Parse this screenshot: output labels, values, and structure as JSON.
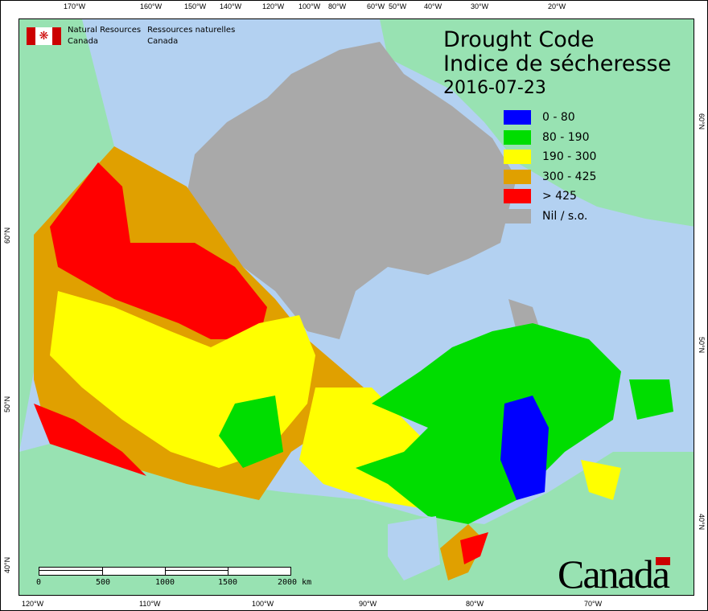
{
  "header": {
    "org_en_1": "Natural Resources",
    "org_en_2": "Canada",
    "org_fr_1": "Ressources naturelles",
    "org_fr_2": "Canada"
  },
  "title": {
    "en": "Drought Code",
    "fr": "Indice de sécheresse",
    "date": "2016-07-23"
  },
  "legend": [
    {
      "label": "0 - 80",
      "color": "#0000ff"
    },
    {
      "label": "80 - 190",
      "color": "#00dd00"
    },
    {
      "label": "190 - 300",
      "color": "#ffff00"
    },
    {
      "label": "300 - 425",
      "color": "#e0a000"
    },
    {
      "label": "> 425",
      "color": "#ff0000"
    },
    {
      "label": "Nil / s.o.",
      "color": "#a9a9a9"
    }
  ],
  "top_ticks": [
    "170°W",
    "160°W",
    "150°W",
    "140°W",
    "120°W",
    "100°W",
    "80°W",
    "60°W",
    "50°W",
    "40°W",
    "30°W",
    "20°W"
  ],
  "bottom_ticks": [
    "120°W",
    "110°W",
    "100°W",
    "90°W",
    "80°W",
    "70°W"
  ],
  "left_ticks": [
    "60°N",
    "50°N",
    "40°N"
  ],
  "right_ticks": [
    "60°N",
    "50°N",
    "40°N"
  ],
  "scale": {
    "labels": [
      "0",
      "500",
      "1000",
      "1500",
      "2000 km"
    ]
  },
  "wordmark": "Canada"
}
